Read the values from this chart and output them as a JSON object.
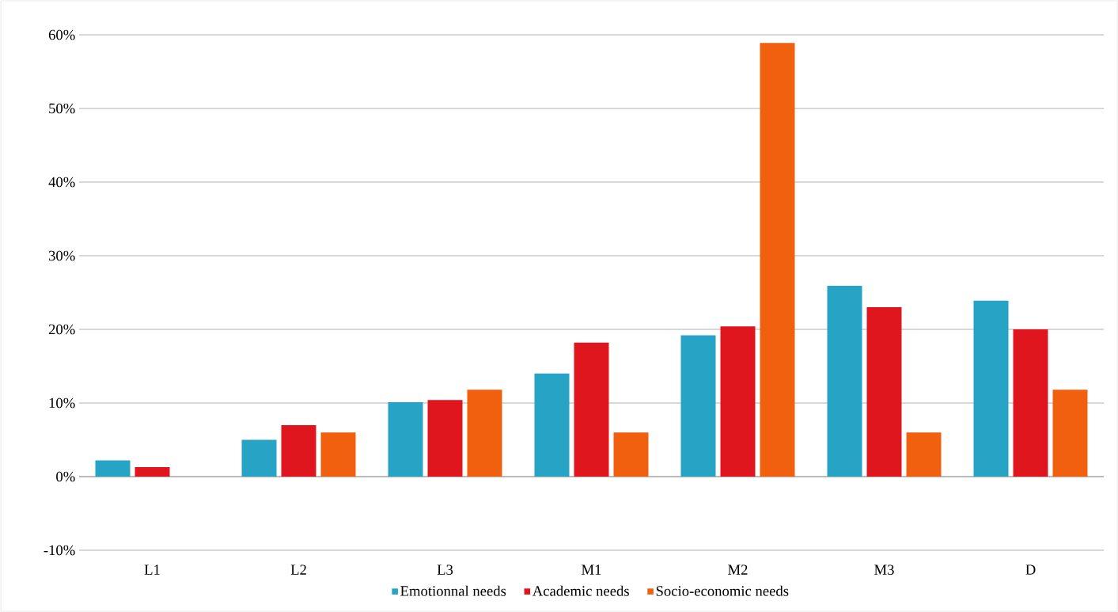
{
  "chart_data": {
    "type": "bar",
    "categories": [
      "L1",
      "L2",
      "L3",
      "M1",
      "M2",
      "M3",
      "D"
    ],
    "series": [
      {
        "name": "Emotionnal needs",
        "color": "#27a3c5",
        "values": [
          2.2,
          5,
          10.1,
          14,
          19.2,
          25.9,
          23.9
        ]
      },
      {
        "name": "Academic needs",
        "color": "#e0161f",
        "values": [
          1.3,
          7,
          10.4,
          18.2,
          20.4,
          23,
          20
        ]
      },
      {
        "name": "Socio-economic needs",
        "color": "#f0600e",
        "values": [
          0,
          6,
          11.8,
          6,
          58.9,
          6,
          11.8
        ]
      }
    ],
    "ylim": [
      -10,
      60
    ],
    "yticks": [
      {
        "value": -10,
        "label": "-10%"
      },
      {
        "value": 0,
        "label": "0%"
      },
      {
        "value": 10,
        "label": "10%"
      },
      {
        "value": 20,
        "label": "20%"
      },
      {
        "value": 30,
        "label": "30%"
      },
      {
        "value": 40,
        "label": "40%"
      },
      {
        "value": 50,
        "label": "50%"
      },
      {
        "value": 60,
        "label": "60%"
      }
    ],
    "grid": "y",
    "legend": "bottom"
  }
}
